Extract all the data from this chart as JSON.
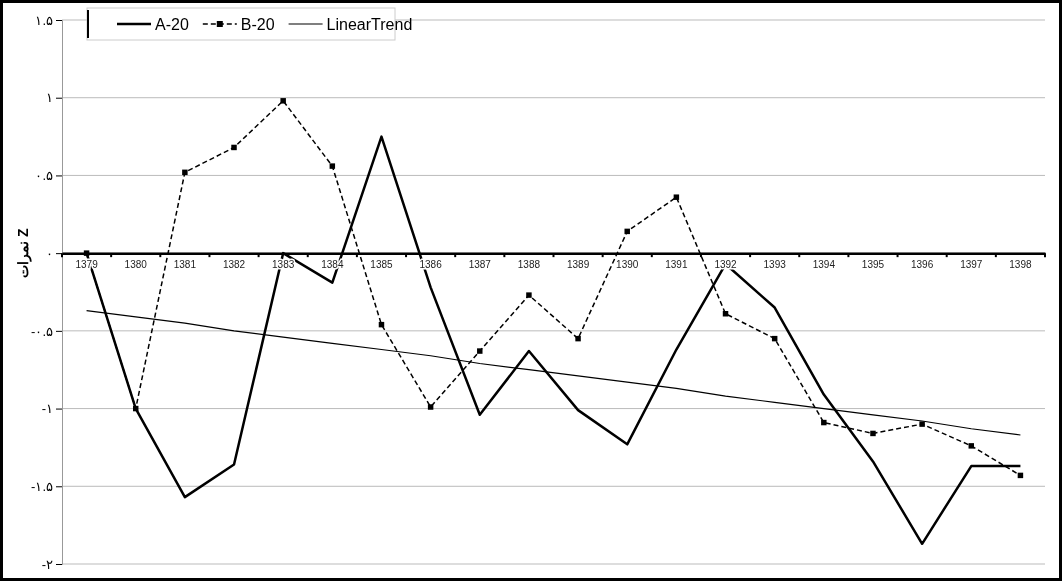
{
  "chart_data": {
    "type": "line",
    "ylabel": "نمرات Z",
    "categories": [
      "1379",
      "1380",
      "1381",
      "1382",
      "1383",
      "1384",
      "1385",
      "1386",
      "1387",
      "1388",
      "1389",
      "1390",
      "1391",
      "1392",
      "1393",
      "1394",
      "1395",
      "1396",
      "1397",
      "1398"
    ],
    "series": [
      {
        "name": "A-20",
        "color": "#000000",
        "line_style": "solid",
        "marker": "none",
        "values": [
          0,
          -1.0,
          -1.57,
          -1.36,
          0,
          -0.19,
          0.75,
          -0.22,
          -1.04,
          -0.63,
          -1.01,
          -1.23,
          -0.62,
          -0.07,
          -0.35,
          -0.91,
          -1.34,
          -1.87,
          -1.37,
          -1.37
        ]
      },
      {
        "name": "B-20",
        "color": "#000000",
        "line_style": "dashed",
        "marker": "square",
        "values": [
          0,
          -1.0,
          0.52,
          0.68,
          0.98,
          0.56,
          -0.46,
          -0.99,
          -0.63,
          -0.27,
          -0.55,
          0.14,
          0.36,
          -0.39,
          -0.55,
          -1.09,
          -1.16,
          -1.1,
          -1.24,
          -1.43
        ]
      },
      {
        "name": "LinearTrend",
        "type": "line",
        "color": "#000000",
        "line_style": "solid",
        "marker": "none",
        "values": [
          -0.37,
          -0.41,
          -0.45,
          -0.5,
          -0.54,
          -0.58,
          -0.62,
          -0.66,
          -0.71,
          -0.75,
          -0.79,
          -0.83,
          -0.87,
          -0.92,
          -0.96,
          -1.0,
          -1.04,
          -1.08,
          -1.13,
          -1.17
        ]
      }
    ],
    "ylim": [
      -2,
      1.5
    ],
    "yticks": [
      {
        "value": 1.5,
        "label": "۱.۵"
      },
      {
        "value": 1,
        "label": "۱"
      },
      {
        "value": 0.5,
        "label": "۰.۵"
      },
      {
        "value": 0,
        "label": "۰"
      },
      {
        "value": -0.5,
        "label": "-۰.۵"
      },
      {
        "value": -1,
        "label": "-۱"
      },
      {
        "value": -1.5,
        "label": "-۱.۵"
      },
      {
        "value": -2,
        "label": "-۲"
      }
    ],
    "grid": "y",
    "legend": "top left"
  }
}
